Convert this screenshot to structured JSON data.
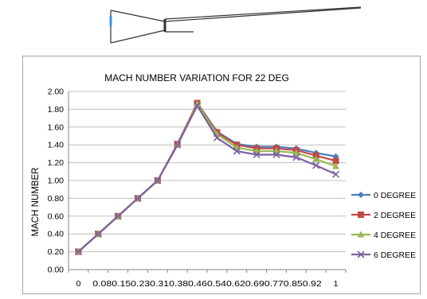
{
  "chart_data": {
    "type": "line",
    "title": "MACH NUMBER VARIATION FOR 22 DEG",
    "xlabel": "",
    "ylabel": "MACH NUMBER",
    "ylim": [
      0,
      2
    ],
    "yticks": [
      "0.00",
      "0.20",
      "0.40",
      "0.60",
      "0.80",
      "1.00",
      "1.20",
      "1.40",
      "1.60",
      "1.80",
      "2.00"
    ],
    "x": [
      0,
      0.08,
      0.15,
      0.23,
      0.31,
      0.38,
      0.46,
      0.54,
      0.62,
      0.69,
      0.77,
      0.85,
      0.92,
      1
    ],
    "xtick_labels": [
      "0",
      "0.080.150.230.310.380.460.540.620.690.770.850.92",
      "1"
    ],
    "grid": true,
    "legend_position": "right",
    "series": [
      {
        "name": "0 DEGREE",
        "color": "#4a7ebb",
        "marker": "diamond",
        "values": [
          0.2,
          0.4,
          0.6,
          0.8,
          1.0,
          1.4,
          1.87,
          1.55,
          1.41,
          1.38,
          1.38,
          1.36,
          1.31,
          1.27
        ]
      },
      {
        "name": "2 DEGREE",
        "color": "#be4b48",
        "marker": "square",
        "values": [
          0.2,
          0.4,
          0.6,
          0.8,
          1.0,
          1.41,
          1.87,
          1.54,
          1.4,
          1.36,
          1.36,
          1.34,
          1.28,
          1.22
        ]
      },
      {
        "name": "4 DEGREE",
        "color": "#98b954",
        "marker": "triangle",
        "values": [
          0.2,
          0.4,
          0.6,
          0.8,
          1.0,
          1.4,
          1.86,
          1.52,
          1.37,
          1.33,
          1.33,
          1.31,
          1.24,
          1.16
        ]
      },
      {
        "name": "6 DEGREE",
        "color": "#7d60a0",
        "marker": "x",
        "values": [
          0.2,
          0.4,
          0.6,
          0.8,
          1.0,
          1.4,
          1.84,
          1.48,
          1.33,
          1.29,
          1.29,
          1.26,
          1.17,
          1.07
        ]
      }
    ]
  },
  "colors": {
    "gridline": "#bfbfbf",
    "axis": "#868686",
    "nozzle_outline": "#333333",
    "nozzle_inlet": "#3b8fe0"
  }
}
